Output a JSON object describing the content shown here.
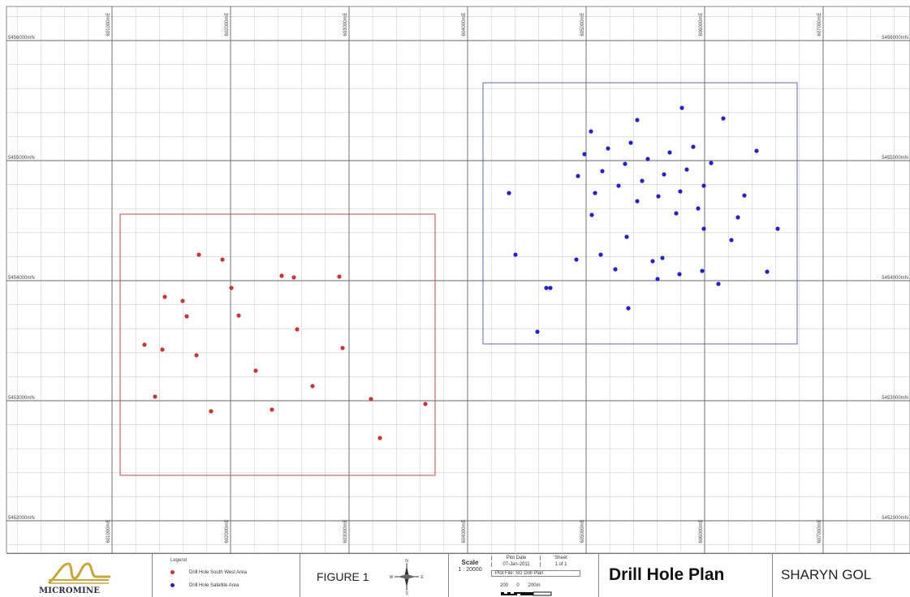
{
  "map": {
    "easting_labels": [
      "601000mE",
      "602000mE",
      "603000mE",
      "604000mE",
      "605000mE",
      "606000mE",
      "607000mE"
    ],
    "northing_labels": [
      "5456000mN",
      "5455000mN",
      "5454000mN",
      "5453000mN",
      "5452000mN"
    ]
  },
  "areas": [
    {
      "name": "south-west-area",
      "color": "#cc3333",
      "outline": "#cc4444"
    },
    {
      "name": "satellite-area",
      "color": "#2222cc",
      "outline": "#6666aa"
    }
  ],
  "titleblock": {
    "logo_text": "MICROMINE",
    "legend_title": "Legend",
    "legend_items": [
      {
        "label": "Drill Hole South West Area",
        "color": "#cc3333"
      },
      {
        "label": "Drill Hole Satellite Area",
        "color": "#2222cc"
      }
    ],
    "figure_label": "FIGURE 1",
    "north_arrow": {
      "n": "N",
      "s": "S",
      "e": "E",
      "w": "W"
    },
    "scale_label": "Scale",
    "scale_value": "1 : 20000",
    "plot_date_label": "Plot Date",
    "plot_date_value": "07-Jan-2011",
    "sheet_label": "Sheet",
    "sheet_value": "1 of 1",
    "plot_file": "Plot File: SG Drill Plan",
    "scalebar_labels": [
      "200",
      "0",
      "200m"
    ],
    "title": "Drill Hole Plan",
    "company": "SHARYN GOL"
  }
}
